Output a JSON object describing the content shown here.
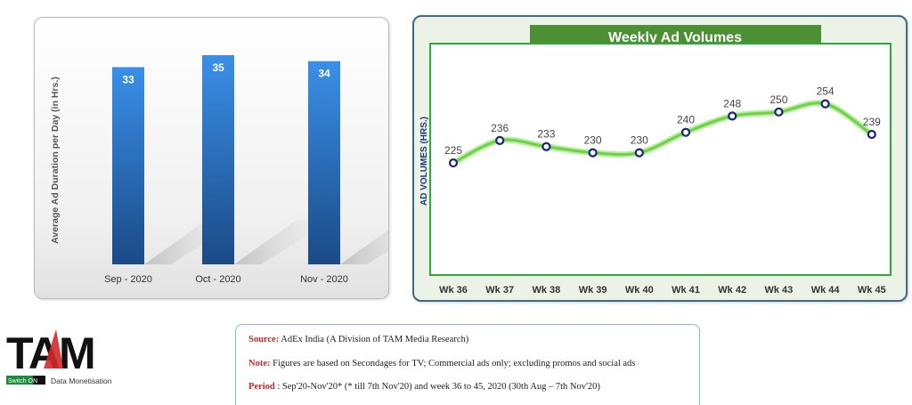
{
  "chart_data": [
    {
      "type": "bar",
      "categories": [
        "Sep - 2020",
        "Oct - 2020",
        "Nov - 2020"
      ],
      "values": [
        33,
        35,
        34
      ],
      "title": "",
      "xlabel": "",
      "ylabel": "Average Ad Duration per Day (in Hrs.)",
      "colors": {
        "bar": "#2f7fd6",
        "bar_dark": "#1b4a86"
      }
    },
    {
      "type": "line",
      "categories": [
        "Wk 36",
        "Wk 37",
        "Wk 38",
        "Wk 39",
        "Wk 40",
        "Wk 41",
        "Wk 42",
        "Wk 43",
        "Wk 44",
        "Wk 45"
      ],
      "values": [
        225,
        236,
        233,
        230,
        230,
        240,
        248,
        250,
        254,
        239
      ],
      "title": "Weekly Ad Volumes",
      "xlabel": "",
      "ylabel": "AD VOLUMES (HRS.)",
      "colors": {
        "line": "#7dd85a",
        "drop": "#4a2bb8",
        "title_bg": "#4d8f35"
      }
    }
  ],
  "logo": {
    "text": "TAM",
    "switch_on": "Switch ON",
    "tagline": "Data Monetisation"
  },
  "footer": {
    "source_label": "Source:",
    "source_text": "AdEx India (A Division of TAM Media Research)",
    "note_label": "Note:",
    "note_text": "Figures are based on Secondages for TV; Commercial ads only; excluding promos and social ads",
    "period_label": "Period",
    "period_text": ": Sep'20-Nov'20* (* till 7th Nov'20) and week 36 to 45, 2020 (30th Aug – 7th Nov'20)"
  }
}
